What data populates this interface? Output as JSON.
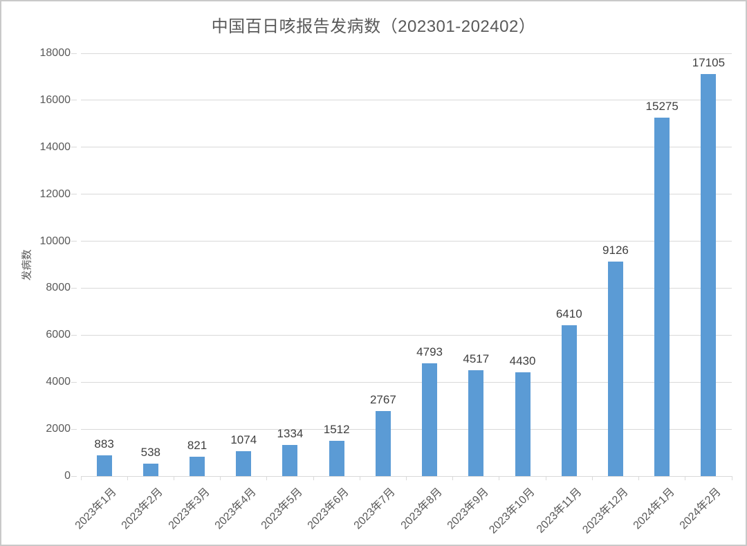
{
  "colors": {
    "bar": "#5B9BD5",
    "gridline": "#D9D9D9",
    "axis_text": "#595959",
    "data_label_text": "#3F3F3F",
    "title_text": "#595959",
    "frame_border": "#C9C9C9",
    "background": "#FFFFFF"
  },
  "chart_data": {
    "type": "bar",
    "title": "中国百日咳报告发病数（202301-202402）",
    "xlabel": "",
    "ylabel": "发病数",
    "categories": [
      "2023年1月",
      "2023年2月",
      "2023年3月",
      "2023年4月",
      "2023年5月",
      "2023年6月",
      "2023年7月",
      "2023年8月",
      "2023年9月",
      "2023年10月",
      "2023年11月",
      "2023年12月",
      "2024年1月",
      "2024年2月"
    ],
    "values": [
      883,
      538,
      821,
      1074,
      1334,
      1512,
      2767,
      4793,
      4517,
      4430,
      6410,
      9126,
      15275,
      17105
    ],
    "data_labels": [
      "883",
      "538",
      "821",
      "1074",
      "1334",
      "1512",
      "2767",
      "4793",
      "4517",
      "4430",
      "6410",
      "9126",
      "15275",
      "17105"
    ],
    "ylim": [
      0,
      18000
    ],
    "yticks": [
      0,
      2000,
      4000,
      6000,
      8000,
      10000,
      12000,
      14000,
      16000,
      18000
    ],
    "grid": "horizontal",
    "legend": "none",
    "x_label_rotation_deg": 45
  }
}
